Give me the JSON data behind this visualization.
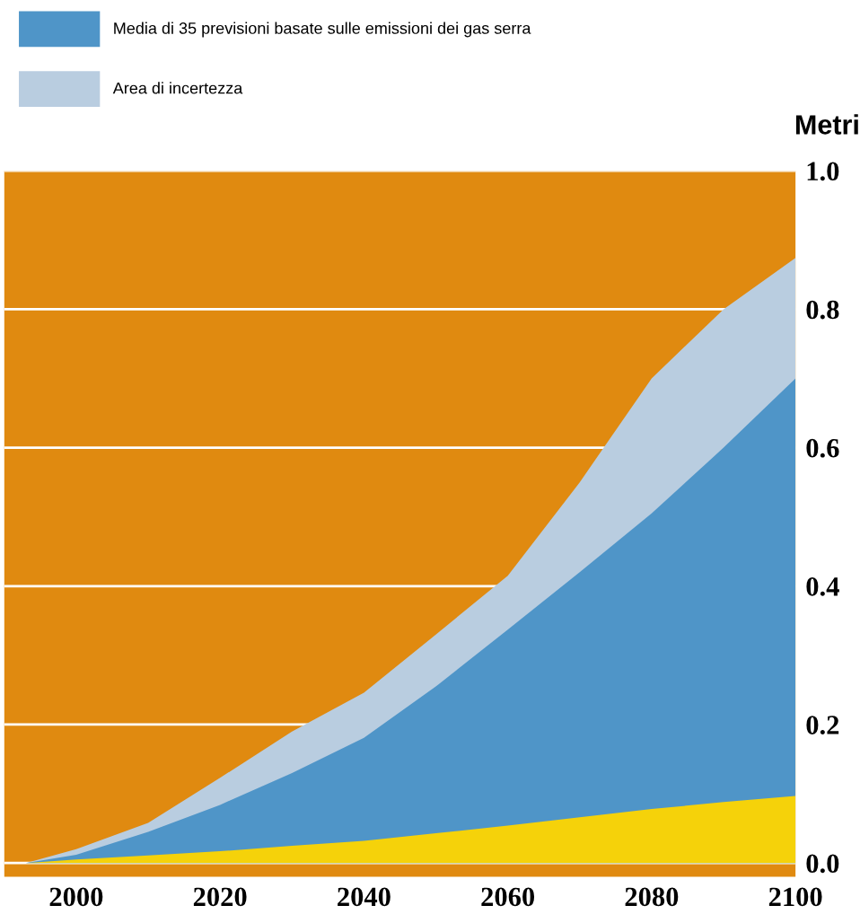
{
  "chart_data": {
    "type": "area",
    "ylabel": "Metri",
    "x": [
      1993,
      2000,
      2010,
      2020,
      2030,
      2040,
      2050,
      2060,
      2070,
      2080,
      2090,
      2100
    ],
    "series": [
      {
        "name": "Area di incertezza",
        "color": "#b9cde0",
        "values": [
          0,
          0.02,
          0.058,
          0.123,
          0.19,
          0.246,
          0.33,
          0.415,
          0.55,
          0.7,
          0.8,
          0.874
        ]
      },
      {
        "name": "Media di 35 previsioni basate sulle emissioni dei gas serra",
        "color": "#4f95c8",
        "values": [
          0,
          0.012,
          0.045,
          0.084,
          0.13,
          0.181,
          0.255,
          0.337,
          0.42,
          0.505,
          0.6,
          0.7
        ]
      },
      {
        "color": "#f5d20a",
        "values": [
          0,
          0.005,
          0.011,
          0.017,
          0.025,
          0.032,
          0.043,
          0.054,
          0.066,
          0.078,
          0.088,
          0.097
        ]
      }
    ],
    "xlim": [
      1990,
      2100
    ],
    "ylim": [
      -0.02,
      1.0
    ],
    "xticks": [
      2000,
      2020,
      2040,
      2060,
      2080,
      2100
    ],
    "yticks": [
      {
        "value": 0,
        "label": "0.0"
      },
      {
        "value": 0.2,
        "label": "0.2"
      },
      {
        "value": 0.4,
        "label": "0.4"
      },
      {
        "value": 0.6,
        "label": "0.6"
      },
      {
        "value": 0.8,
        "label": "0.8"
      },
      {
        "value": 1.0,
        "label": "1.0"
      }
    ],
    "grid": "y",
    "legend": "top left"
  }
}
